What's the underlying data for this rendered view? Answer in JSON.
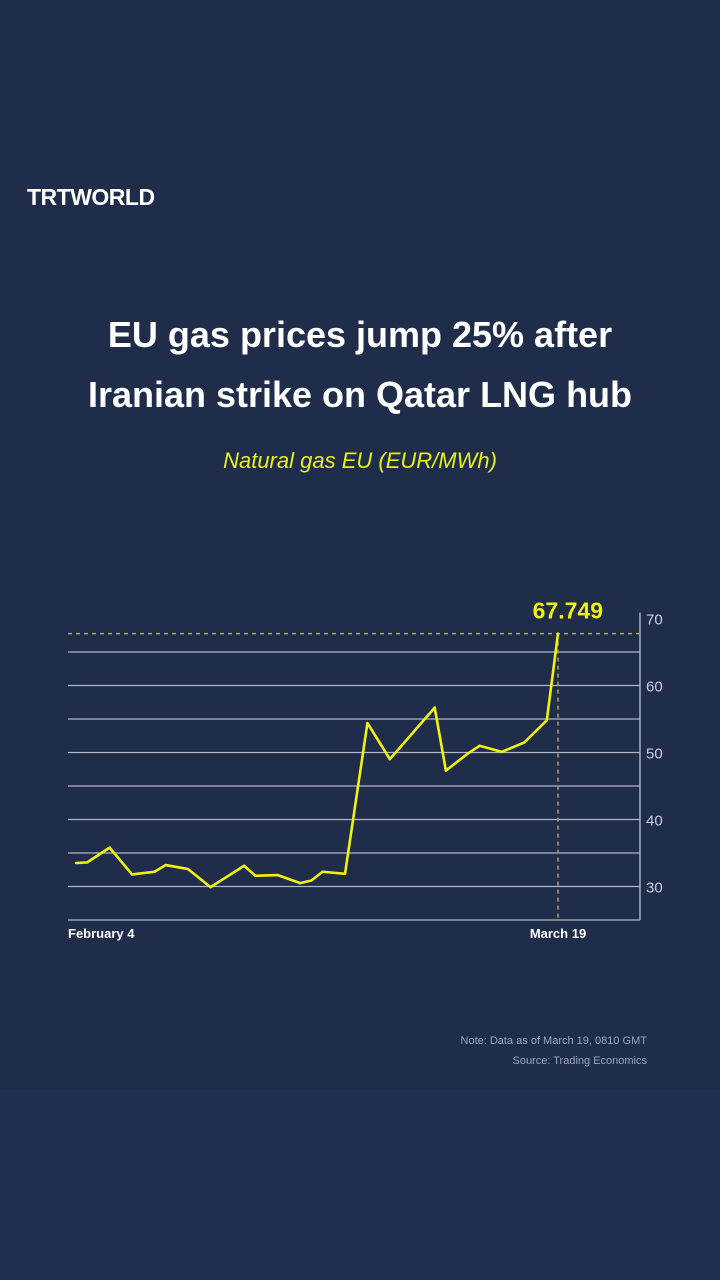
{
  "brand": "TRTWORLD",
  "title_lines": [
    "EU gas prices jump 25% after",
    "Iranian strike on Qatar LNG hub"
  ],
  "subtitle": "Natural gas EU (EUR/MWh)",
  "note": "Note: Data as of March 19, 0810 GMT",
  "source": "Source: Trading Economics",
  "colors": {
    "line": "#f2f20f",
    "bg": "#1f2d4b",
    "grid": "#c9cfdb"
  },
  "chart_data": {
    "type": "line",
    "title": "Natural gas EU (EUR/MWh)",
    "xlabel": "",
    "ylabel": "",
    "x_unit": "days since February 4",
    "x": [
      0,
      1,
      3,
      5,
      7,
      8,
      10,
      12,
      15,
      16,
      18,
      20,
      21,
      22,
      24,
      26,
      28,
      32,
      33,
      35,
      36,
      38,
      40,
      42,
      43
    ],
    "values": [
      33.5,
      33.6,
      35.8,
      31.8,
      32.2,
      33.2,
      32.6,
      29.9,
      33.1,
      31.6,
      31.7,
      30.5,
      30.9,
      32.2,
      31.9,
      54.4,
      49.0,
      56.7,
      47.3,
      49.9,
      51.0,
      50.1,
      51.5,
      54.8,
      67.749
    ],
    "xlim": [
      0,
      43
    ],
    "ylim": [
      25,
      70
    ],
    "y_ticks": [
      30,
      40,
      50,
      60,
      70
    ],
    "gridlines": [
      25,
      30,
      35,
      40,
      45,
      50,
      55,
      60,
      65
    ],
    "x_tick_labels": [
      "February 4",
      "March 19"
    ],
    "annotation": "67.749",
    "last_value": 67.749
  }
}
